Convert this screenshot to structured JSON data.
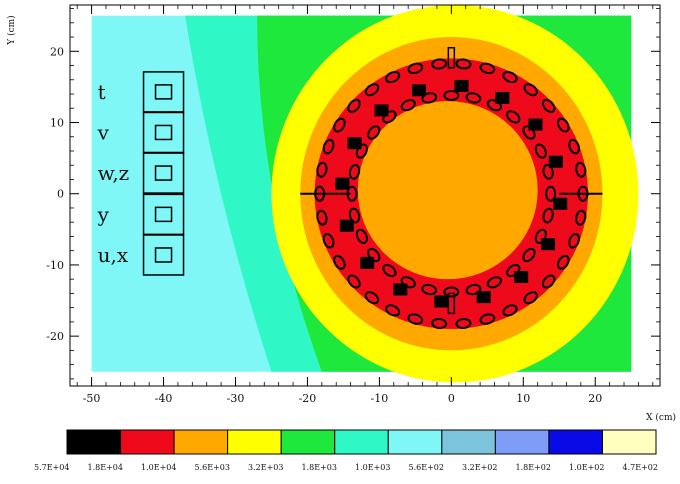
{
  "chart_data": {
    "type": "heatmap",
    "title": "",
    "xlabel": "X (cm)",
    "ylabel": "Y (cm)",
    "xlim": [
      -53,
      29
    ],
    "ylim": [
      -27,
      26.5
    ],
    "x_ticks": [
      "-50",
      "-40",
      "-30",
      "-20",
      "-10",
      "0",
      "10",
      "20"
    ],
    "y_ticks": [
      "20",
      "10",
      "0",
      "-10",
      "-20"
    ],
    "grid": false,
    "legend": {
      "placement": "bottom",
      "colors": [
        "#000000",
        "#ee0a1a",
        "#ffa800",
        "#ffff00",
        "#1ee83c",
        "#30f7c6",
        "#7ff7f7",
        "#7cc3dc",
        "#7f9cf7",
        "#0a0ae6",
        "#ffffc0"
      ],
      "labels": [
        "5.7E+04",
        "1.8E+04",
        "1.0E+04",
        "5.6E+03",
        "3.2E+03",
        "1.8E+03",
        "1.0E+03",
        "5.6E+02",
        "3.2E+02",
        "1.8E+02",
        "1.0E+02",
        "4.7E+02"
      ]
    },
    "regions": [
      {
        "color": "#7ff7f7",
        "x_range": [
          -50,
          -37
        ],
        "y_range": [
          -25,
          25
        ]
      },
      {
        "color": "#30f7c6",
        "shape": "band",
        "x_range": [
          -38,
          -25
        ]
      },
      {
        "color": "#1ee83c",
        "shape": "band",
        "x_range": [
          -28,
          -18
        ]
      },
      {
        "color": "#ffff00",
        "shape": "ring",
        "center": [
          0,
          0
        ],
        "radius": [
          22,
          28
        ]
      },
      {
        "color": "#ffa800",
        "shape": "ring",
        "center": [
          0,
          0
        ],
        "radius": [
          19,
          23
        ]
      },
      {
        "color": "#ee0a1a",
        "shape": "ring",
        "center": [
          0,
          0
        ],
        "radius": [
          12.5,
          19
        ]
      },
      {
        "color": "#ffa800",
        "shape": "disk",
        "center": [
          0,
          0
        ],
        "radius": 12.5
      }
    ],
    "detector_layers": [
      {
        "label": "t",
        "x": -40,
        "y": 14.3
      },
      {
        "label": "v",
        "x": -40,
        "y": 8.6
      },
      {
        "label": "w,z",
        "x": -40,
        "y": 2.9
      },
      {
        "label": "y",
        "x": -40,
        "y": -2.9
      },
      {
        "label": "u,x",
        "x": -40,
        "y": -8.6
      }
    ]
  }
}
